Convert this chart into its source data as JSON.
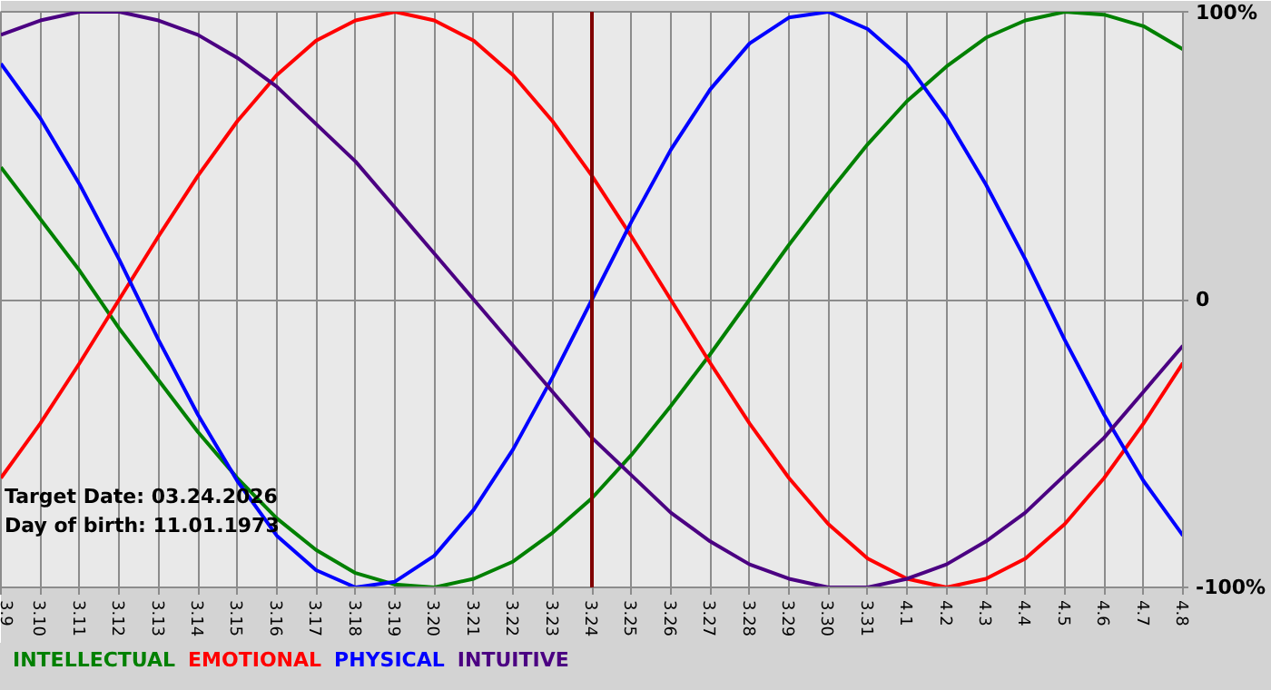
{
  "chart_data": {
    "type": "line",
    "categories": [
      "3.9",
      "3.10",
      "3.11",
      "3.12",
      "3.13",
      "3.14",
      "3.15",
      "3.16",
      "3.17",
      "3.18",
      "3.19",
      "3.20",
      "3.21",
      "3.22",
      "3.23",
      "3.24",
      "3.25",
      "3.26",
      "3.27",
      "3.28",
      "3.29",
      "3.30",
      "3.31",
      "4.1",
      "4.2",
      "4.3",
      "4.4",
      "4.5",
      "4.6",
      "4.7",
      "4.8"
    ],
    "series": [
      {
        "name": "INTELLECTUAL",
        "color": "#008000",
        "values": [
          46,
          28,
          10,
          -10,
          -28,
          -46,
          -62,
          -76,
          -87,
          -95,
          -99,
          -100,
          -97,
          -91,
          -81,
          -69,
          -54,
          -37,
          -19,
          0,
          19,
          37,
          54,
          69,
          81,
          91,
          97,
          100,
          99,
          95,
          87
        ]
      },
      {
        "name": "EMOTIONAL",
        "color": "#ff0000",
        "values": [
          -62,
          -43,
          -22,
          0,
          22,
          43,
          62,
          78,
          90,
          97,
          100,
          97,
          90,
          78,
          62,
          43,
          22,
          0,
          -22,
          -43,
          -62,
          -78,
          -90,
          -97,
          -100,
          -97,
          -90,
          -78,
          -62,
          -43,
          -22
        ]
      },
      {
        "name": "PHYSICAL",
        "color": "#0000ff",
        "values": [
          82,
          63,
          40,
          14,
          -14,
          -40,
          -63,
          -82,
          -94,
          -100,
          -98,
          -89,
          -73,
          -52,
          -27,
          0,
          27,
          52,
          73,
          89,
          98,
          100,
          94,
          82,
          63,
          40,
          14,
          -14,
          -40,
          -63,
          -82
        ]
      },
      {
        "name": "INTUITIVE",
        "color": "#4b0082",
        "values": [
          92,
          97,
          100,
          100,
          97,
          92,
          84,
          74,
          61,
          48,
          32,
          16,
          0,
          -16,
          -32,
          -48,
          -61,
          -74,
          -84,
          -92,
          -97,
          -100,
          -100,
          -97,
          -92,
          -84,
          -74,
          -61,
          -48,
          -32,
          -16
        ]
      }
    ],
    "ylim": [
      -100,
      100
    ],
    "yticks": [
      {
        "value": -100,
        "label": "-100%"
      },
      0,
      {
        "value": 100,
        "label": "100%"
      }
    ],
    "grid": true,
    "ref_lines": [
      {
        "axis": "x",
        "value": "3.24",
        "color": "#800000"
      }
    ],
    "annotations": [
      "Target Date: 03.24.2026",
      "Day of birth: 11.01.1973"
    ]
  }
}
